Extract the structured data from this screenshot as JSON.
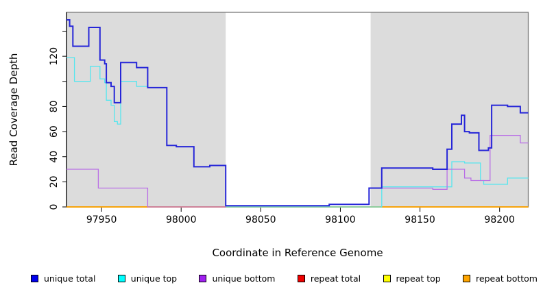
{
  "chart_data": {
    "type": "line",
    "subtype": "step-coverage",
    "title": "",
    "xlabel": "Coordinate in Reference Genome",
    "ylabel": "Read Coverage Depth",
    "xlim": [
      97928,
      98218
    ],
    "ylim": [
      0,
      155
    ],
    "grid": false,
    "plot_bg": "#ffffff",
    "frame_color": "#7a7a7a",
    "axis_color": "#000000",
    "shaded_band_color": "#dcdcdc",
    "shaded_regions": [
      {
        "x0": 97928,
        "x1": 98028
      },
      {
        "x0": 98119,
        "x1": 98218
      }
    ],
    "x_ticks": [
      {
        "v": 97950,
        "label": "97950"
      },
      {
        "v": 98000,
        "label": "98000"
      },
      {
        "v": 98050,
        "label": "98050"
      },
      {
        "v": 98100,
        "label": "98100"
      },
      {
        "v": 98150,
        "label": "98150"
      },
      {
        "v": 98200,
        "label": "98200"
      }
    ],
    "y_ticks": [
      {
        "v": 0,
        "label": "0"
      },
      {
        "v": 20,
        "label": "20"
      },
      {
        "v": 40,
        "label": "40"
      },
      {
        "v": 60,
        "label": "60"
      },
      {
        "v": 80,
        "label": "80"
      },
      {
        "v": 100,
        "label": ""
      },
      {
        "v": 120,
        "label": "120"
      },
      {
        "v": 140,
        "label": ""
      }
    ],
    "legend_position": "bottom",
    "draw_order": [
      3,
      4,
      5,
      1,
      2,
      0
    ],
    "series": [
      {
        "name": "unique total",
        "color": "#0000ee",
        "line_color": "#2626d8",
        "width": 2,
        "steps": [
          [
            97928,
            149
          ],
          [
            97930,
            144
          ],
          [
            97932,
            128
          ],
          [
            97942,
            143
          ],
          [
            97949,
            117
          ],
          [
            97952,
            114
          ],
          [
            97953,
            99
          ],
          [
            97956,
            96
          ],
          [
            97958,
            83
          ],
          [
            97962,
            115
          ],
          [
            97972,
            111
          ],
          [
            97979,
            95
          ],
          [
            97991,
            49
          ],
          [
            97997,
            48
          ],
          [
            98008,
            32
          ],
          [
            98018,
            33
          ],
          [
            98028,
            1
          ],
          [
            98093,
            2
          ],
          [
            98118,
            15
          ],
          [
            98126,
            31
          ],
          [
            98158,
            30
          ],
          [
            98167,
            46
          ],
          [
            98170,
            66
          ],
          [
            98176,
            73
          ],
          [
            98178,
            60
          ],
          [
            98181,
            59
          ],
          [
            98187,
            45
          ],
          [
            98193,
            47
          ],
          [
            98195,
            81
          ],
          [
            98205,
            80
          ],
          [
            98213,
            75
          ],
          [
            98218,
            75
          ]
        ]
      },
      {
        "name": "unique top",
        "color": "#00ffff",
        "line_color": "#55e6ee",
        "width": 1.3,
        "steps": [
          [
            97928,
            119
          ],
          [
            97933,
            100
          ],
          [
            97943,
            112
          ],
          [
            97949,
            102
          ],
          [
            97952,
            99
          ],
          [
            97953,
            85
          ],
          [
            97956,
            81
          ],
          [
            97958,
            68
          ],
          [
            97960,
            66
          ],
          [
            97962,
            100
          ],
          [
            97972,
            96
          ],
          [
            97979,
            95
          ],
          [
            97991,
            49
          ],
          [
            97997,
            48
          ],
          [
            98008,
            32
          ],
          [
            98018,
            33
          ],
          [
            98028,
            0
          ],
          [
            98126,
            16
          ],
          [
            98170,
            36
          ],
          [
            98178,
            35
          ],
          [
            98188,
            21
          ],
          [
            98190,
            18
          ],
          [
            98205,
            23
          ],
          [
            98218,
            23
          ]
        ]
      },
      {
        "name": "unique bottom",
        "color": "#a020f0",
        "line_color": "#b96fe6",
        "width": 1.3,
        "steps": [
          [
            97928,
            30
          ],
          [
            97948,
            15
          ],
          [
            97979,
            0
          ],
          [
            98028,
            1
          ],
          [
            98093,
            2
          ],
          [
            98118,
            15
          ],
          [
            98158,
            14
          ],
          [
            98167,
            30
          ],
          [
            98178,
            23
          ],
          [
            98182,
            21
          ],
          [
            98194,
            57
          ],
          [
            98213,
            51
          ],
          [
            98218,
            51
          ]
        ]
      },
      {
        "name": "repeat total",
        "color": "#ee0000",
        "line_color": "#ee0000",
        "width": 1.3,
        "steps": [
          [
            97928,
            0
          ],
          [
            98218,
            0
          ]
        ]
      },
      {
        "name": "repeat top",
        "color": "#ffff00",
        "line_color": "#ffff00",
        "width": 1.3,
        "steps": [
          [
            97928,
            0
          ],
          [
            98218,
            0
          ]
        ]
      },
      {
        "name": "repeat bottom",
        "color": "#ffa500",
        "line_color": "#ffa500",
        "width": 1.7,
        "steps": [
          [
            97928,
            0
          ],
          [
            98218,
            0
          ]
        ]
      }
    ]
  }
}
